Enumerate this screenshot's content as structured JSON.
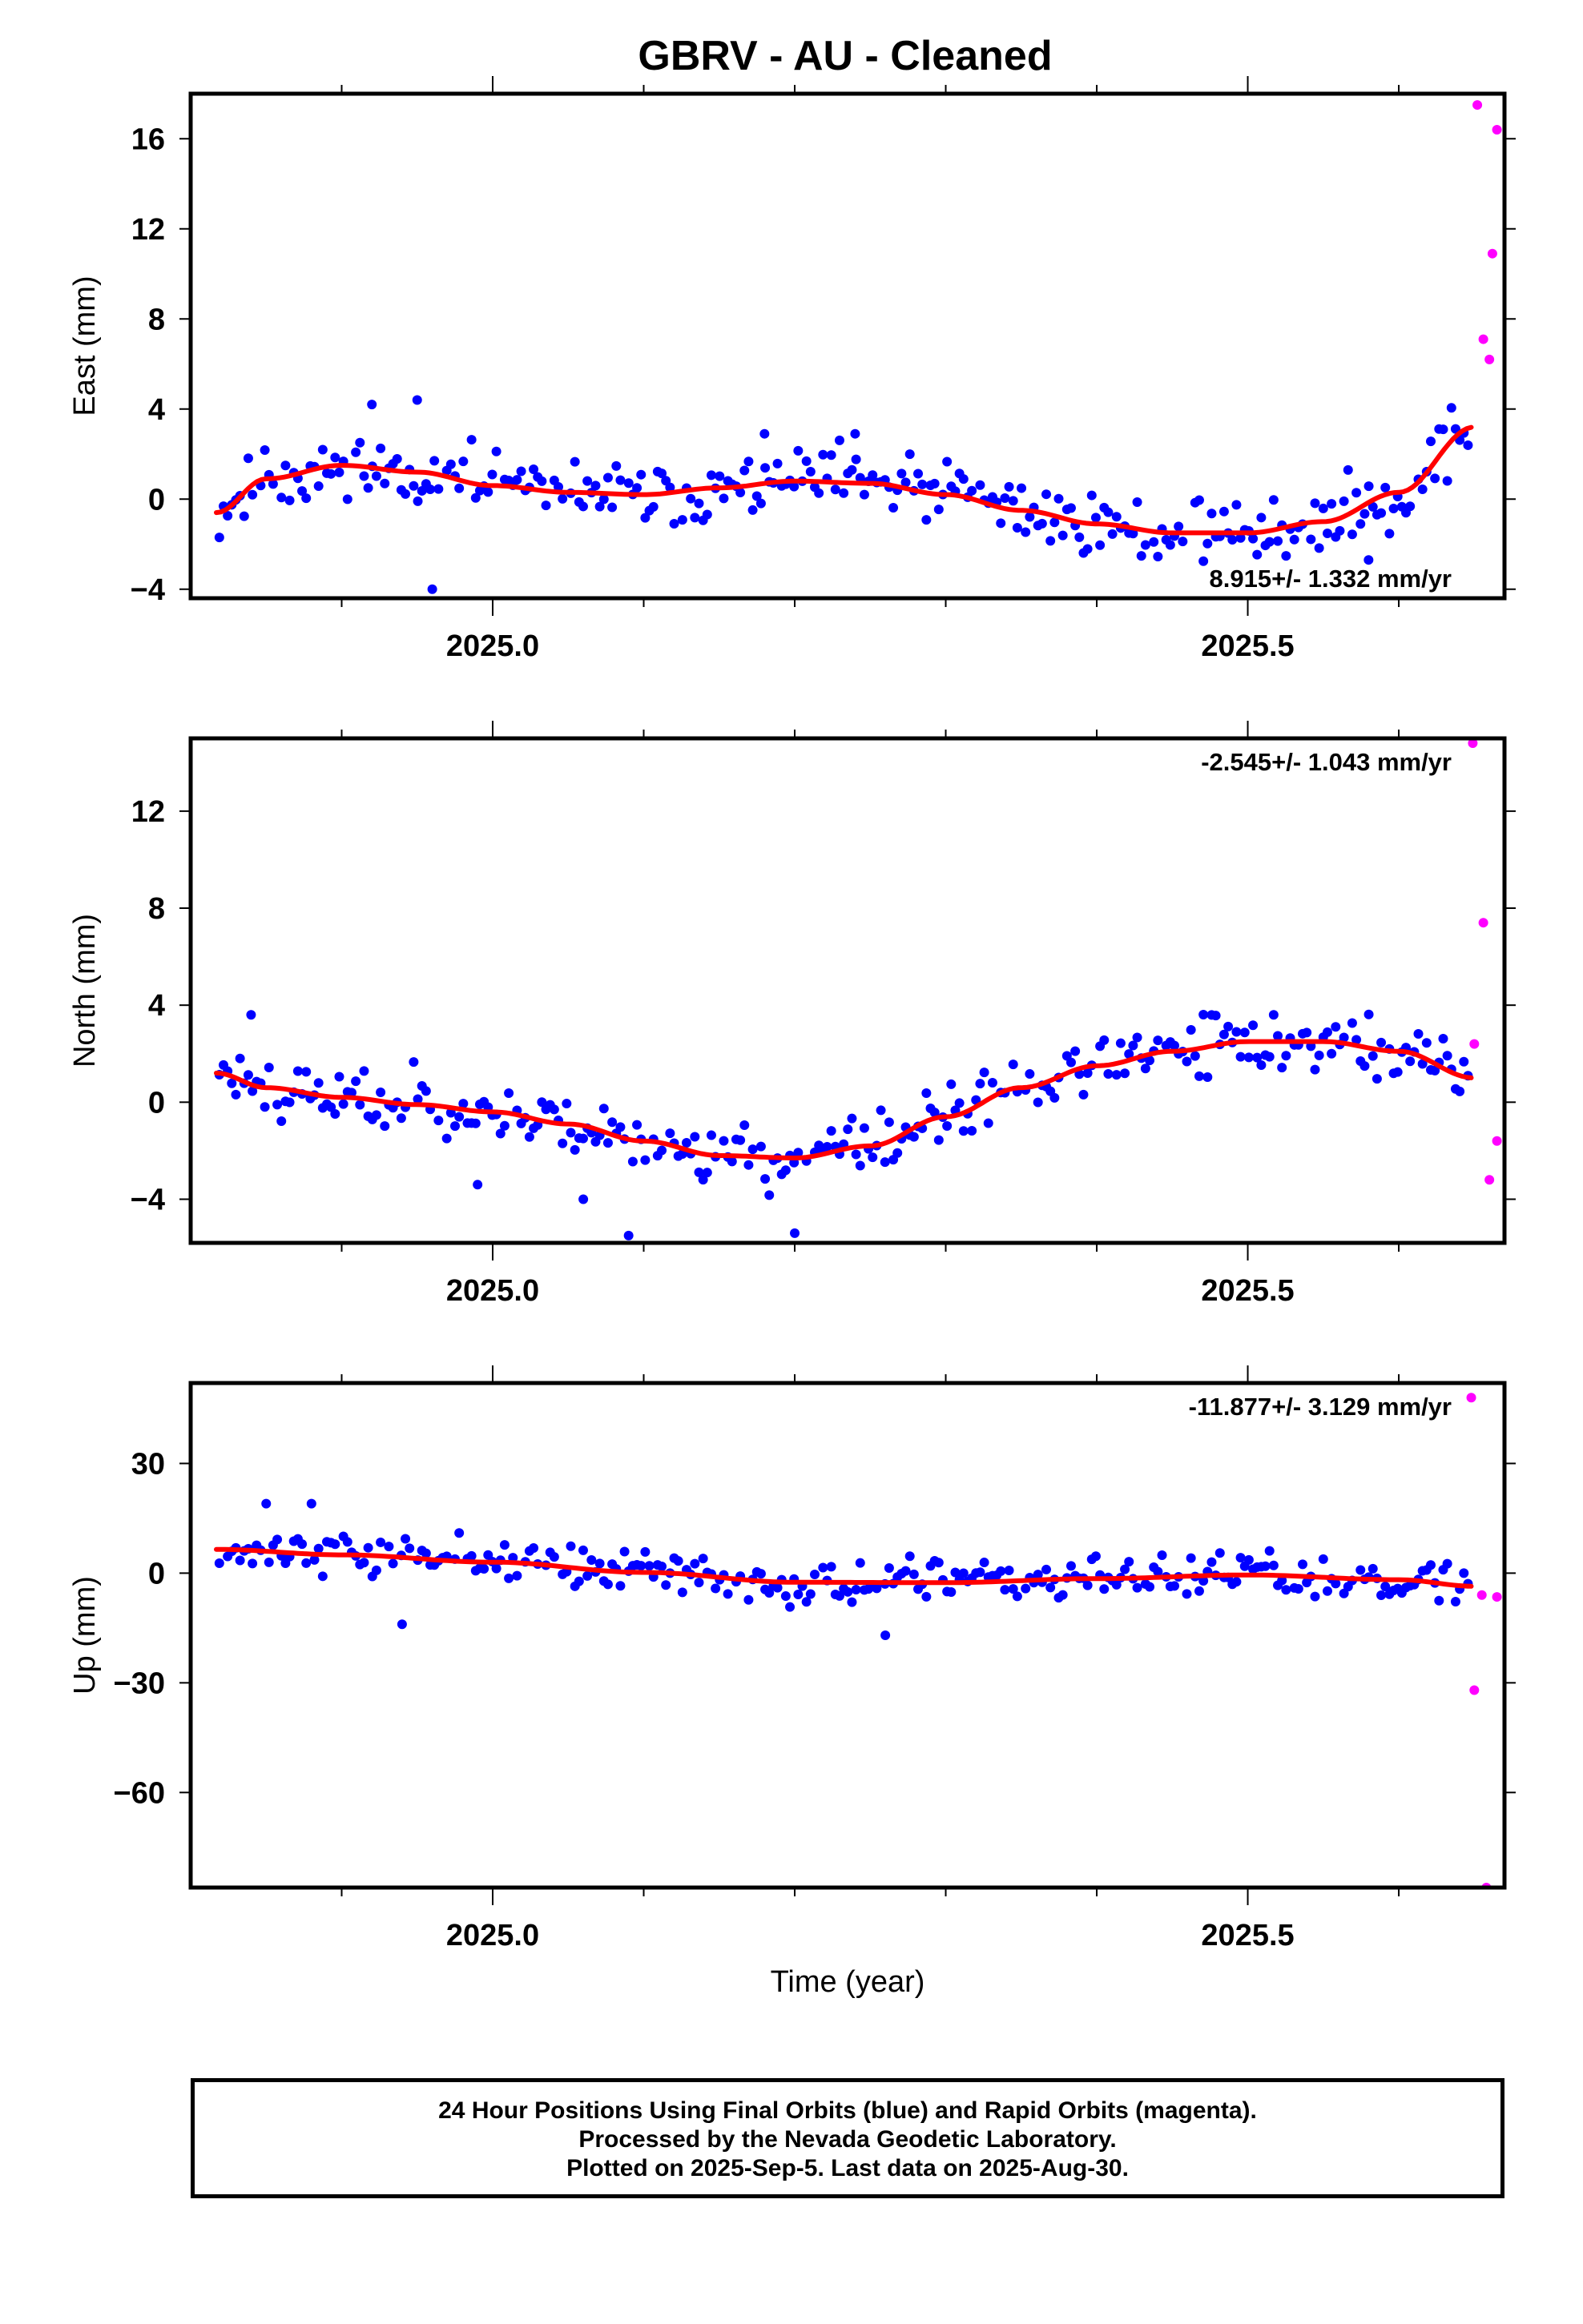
{
  "title": "GBRV  - AU - Cleaned",
  "colors": {
    "final": "#0000ff",
    "rapid": "#ff00ff",
    "fit": "#ff0000",
    "frame": "#000000"
  },
  "footer": {
    "line1": "24 Hour Positions Using Final Orbits (blue) and Rapid Orbits (magenta).",
    "line2": "Processed by the Nevada Geodetic Laboratory.",
    "line3": "Plotted on 2025-Sep-5. Last data on 2025-Aug-30."
  },
  "chart_data": [
    {
      "type": "scatter",
      "ylabel": "East (mm)",
      "xlabel": "",
      "xlim": [
        2024.8,
        2025.67
      ],
      "ylim": [
        -4.4,
        18
      ],
      "x_ticks": [
        2025.0,
        2025.5
      ],
      "y_ticks": [
        -4,
        0,
        4,
        8,
        12,
        16
      ],
      "rate": "8.915+/- 1.332 mm/yr",
      "rate_position": "bottom-right",
      "fit": {
        "x": [
          2024.817,
          2024.85,
          2024.9,
          2024.95,
          2025.0,
          2025.05,
          2025.1,
          2025.15,
          2025.2,
          2025.25,
          2025.3,
          2025.35,
          2025.4,
          2025.45,
          2025.5,
          2025.55,
          2025.6,
          2025.65
        ],
        "y": [
          -0.6,
          0.9,
          1.5,
          1.2,
          0.6,
          0.3,
          0.2,
          0.5,
          0.8,
          0.7,
          0.2,
          -0.5,
          -1.1,
          -1.5,
          -1.5,
          -1.0,
          0.3,
          3.2
        ]
      },
      "final_seed": 11,
      "final_noise": 1.0,
      "final_outliers": [
        [
          2024.92,
          4.2
        ],
        [
          2024.95,
          4.4
        ],
        [
          2024.96,
          -4.0
        ],
        [
          2025.18,
          2.9
        ],
        [
          2025.24,
          2.9
        ],
        [
          2025.58,
          -2.7
        ]
      ],
      "rapid": [
        [
          2025.652,
          17.5
        ],
        [
          2025.656,
          7.1
        ],
        [
          2025.66,
          6.2
        ],
        [
          2025.662,
          10.9
        ],
        [
          2025.665,
          16.4
        ]
      ]
    },
    {
      "type": "scatter",
      "ylabel": "North (mm)",
      "xlabel": "",
      "xlim": [
        2024.8,
        2025.67
      ],
      "ylim": [
        -5.8,
        15
      ],
      "x_ticks": [
        2025.0,
        2025.5
      ],
      "y_ticks": [
        -4,
        0,
        4,
        8,
        12
      ],
      "rate": "-2.545+/- 1.043 mm/yr",
      "rate_position": "top-right",
      "fit": {
        "x": [
          2024.817,
          2024.85,
          2024.9,
          2024.95,
          2025.0,
          2025.05,
          2025.1,
          2025.15,
          2025.2,
          2025.25,
          2025.3,
          2025.35,
          2025.4,
          2025.45,
          2025.5,
          2025.55,
          2025.6,
          2025.65
        ],
        "y": [
          1.2,
          0.6,
          0.2,
          -0.1,
          -0.4,
          -0.9,
          -1.6,
          -2.2,
          -2.3,
          -1.8,
          -0.6,
          0.6,
          1.5,
          2.1,
          2.5,
          2.5,
          2.1,
          1.0
        ]
      },
      "final_seed": 23,
      "final_noise": 0.9,
      "final_outliers": [
        [
          2024.84,
          3.6
        ],
        [
          2025.09,
          -5.5
        ],
        [
          2025.2,
          -5.4
        ],
        [
          2025.06,
          -4.0
        ],
        [
          2024.99,
          -3.4
        ]
      ],
      "rapid": [
        [
          2025.649,
          14.8
        ],
        [
          2025.65,
          2.4
        ],
        [
          2025.656,
          7.4
        ],
        [
          2025.66,
          -3.2
        ],
        [
          2025.665,
          -1.6
        ]
      ]
    },
    {
      "type": "scatter",
      "ylabel": "Up (mm)",
      "xlabel": "Time (year)",
      "xlim": [
        2024.8,
        2025.67
      ],
      "ylim": [
        -86,
        52
      ],
      "x_ticks": [
        2025.0,
        2025.5
      ],
      "y_ticks": [
        -60,
        -30,
        0,
        30
      ],
      "rate": "-11.877+/- 3.129 mm/yr",
      "rate_position": "top-right",
      "fit": {
        "x": [
          2024.817,
          2024.9,
          2025.0,
          2025.1,
          2025.2,
          2025.3,
          2025.4,
          2025.5,
          2025.6,
          2025.65
        ],
        "y": [
          6.5,
          5.0,
          3.0,
          0.2,
          -2.5,
          -2.6,
          -1.5,
          -0.5,
          -1.8,
          -3.6
        ]
      },
      "final_seed": 37,
      "final_noise": 4.0,
      "final_outliers": [
        [
          2024.94,
          -14.0
        ],
        [
          2025.26,
          -17.0
        ],
        [
          2024.88,
          19.0
        ],
        [
          2024.85,
          19.0
        ]
      ],
      "rapid": [
        [
          2025.648,
          48.0
        ],
        [
          2025.65,
          -32.0
        ],
        [
          2025.655,
          -6.0
        ],
        [
          2025.658,
          -86.0
        ],
        [
          2025.665,
          -6.5
        ]
      ]
    }
  ]
}
